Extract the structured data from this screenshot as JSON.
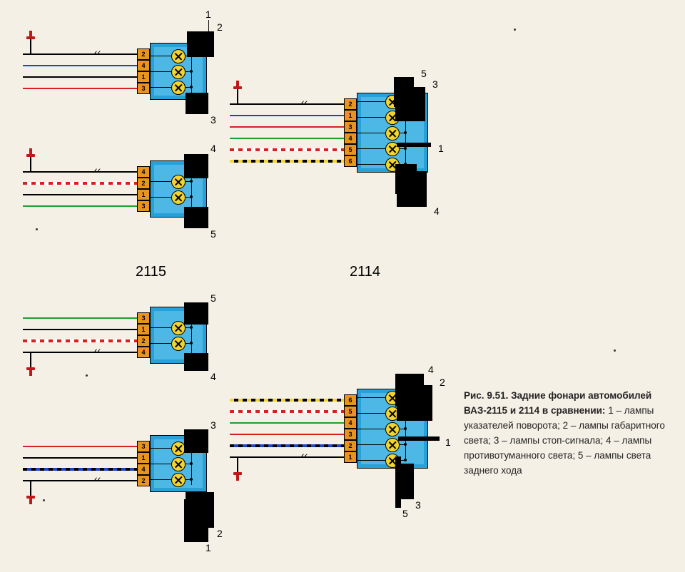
{
  "colors": {
    "bg": "#f5f0e6",
    "connector": "#28a0d8",
    "connector_inner": "#4db8e6",
    "pinblock": "#e8941f",
    "lamp": "#f2d431",
    "black": "#000000",
    "red": "#d82020",
    "blue": "#1848c8",
    "green": "#1aa030",
    "white": "#ffffff",
    "yellow": "#f2d431",
    "gnd_red": "#c01818"
  },
  "columns": {
    "c2115": "2115",
    "c2114": "2114"
  },
  "legend": {
    "title": "Рис. 9.51. Задние фонари автомобилей ВАЗ-2115 и 2114 в сравнении:",
    "items": [
      "1 – лампы указателей поворота;",
      "2 – лампы габаритного света;",
      "3 – лампы стоп-сигнала;",
      "4 – лампы противотуманного света;",
      "5 – лампы света заднего хода"
    ]
  },
  "callouts": {
    "a1": "1",
    "a2": "2",
    "a3": "3",
    "a4": "4",
    "a5": "5",
    "b1": "1",
    "b2": "2",
    "b3": "3",
    "b4": "4",
    "b5": "5",
    "c4": "4",
    "c5": "5",
    "d1": "1",
    "d2": "2",
    "d3": "3",
    "e1": "1",
    "e2": "2",
    "e3": "3",
    "e4": "4",
    "e5": "5"
  },
  "connectors": {
    "A": {
      "pins": [
        "2",
        "4",
        "1",
        "3"
      ],
      "lamps": 3
    },
    "B": {
      "pins": [
        "4",
        "2",
        "1",
        "3"
      ],
      "lamps": 2
    },
    "C": {
      "pins": [
        "3",
        "1",
        "2",
        "4"
      ],
      "lamps": 2
    },
    "D": {
      "pins": [
        "3",
        "1",
        "4",
        "2"
      ],
      "lamps": 3
    },
    "E": {
      "pins": [
        "2",
        "1",
        "3",
        "4",
        "5",
        "6"
      ],
      "lamps": 5
    },
    "F": {
      "pins": [
        "6",
        "5",
        "4",
        "3",
        "2",
        "1"
      ],
      "lamps": 5
    }
  },
  "wires": {
    "A": [
      {
        "color": "black",
        "y": 0,
        "gnd": true
      },
      {
        "color": "blue",
        "y": 1
      },
      {
        "color": "black",
        "y": 2
      },
      {
        "color": "red",
        "y": 3
      }
    ],
    "B": [
      {
        "color": "black",
        "y": 0,
        "gnd": true
      },
      {
        "stripe": [
          "red",
          "white"
        ],
        "y": 1
      },
      {
        "color": "black",
        "y": 2
      },
      {
        "color": "green",
        "y": 3
      }
    ],
    "C": [
      {
        "color": "green",
        "y": 0
      },
      {
        "color": "black",
        "y": 1
      },
      {
        "stripe": [
          "red",
          "white"
        ],
        "y": 2
      },
      {
        "color": "black",
        "y": 3,
        "gnd": true
      }
    ],
    "D": [
      {
        "color": "red",
        "y": 0
      },
      {
        "color": "black",
        "y": 1
      },
      {
        "stripe": [
          "black",
          "blue"
        ],
        "y": 2
      },
      {
        "color": "black",
        "y": 3,
        "gnd": true
      }
    ],
    "E": [
      {
        "color": "black",
        "y": 0,
        "gnd": true
      },
      {
        "color": "blue",
        "y": 1
      },
      {
        "color": "red",
        "y": 2
      },
      {
        "color": "green",
        "y": 3
      },
      {
        "stripe": [
          "red",
          "white"
        ],
        "y": 4
      },
      {
        "stripe": [
          "yellow",
          "black"
        ],
        "y": 5
      }
    ],
    "F": [
      {
        "stripe": [
          "yellow",
          "black"
        ],
        "y": 0
      },
      {
        "stripe": [
          "red",
          "white"
        ],
        "y": 1
      },
      {
        "color": "green",
        "y": 2
      },
      {
        "color": "red",
        "y": 3
      },
      {
        "stripe": [
          "black",
          "blue"
        ],
        "y": 4
      },
      {
        "color": "black",
        "y": 5,
        "gnd": true
      }
    ]
  },
  "layout": {
    "pin_h": 16,
    "pin_w": 18,
    "box_pad": 10,
    "wire_len": 160
  }
}
